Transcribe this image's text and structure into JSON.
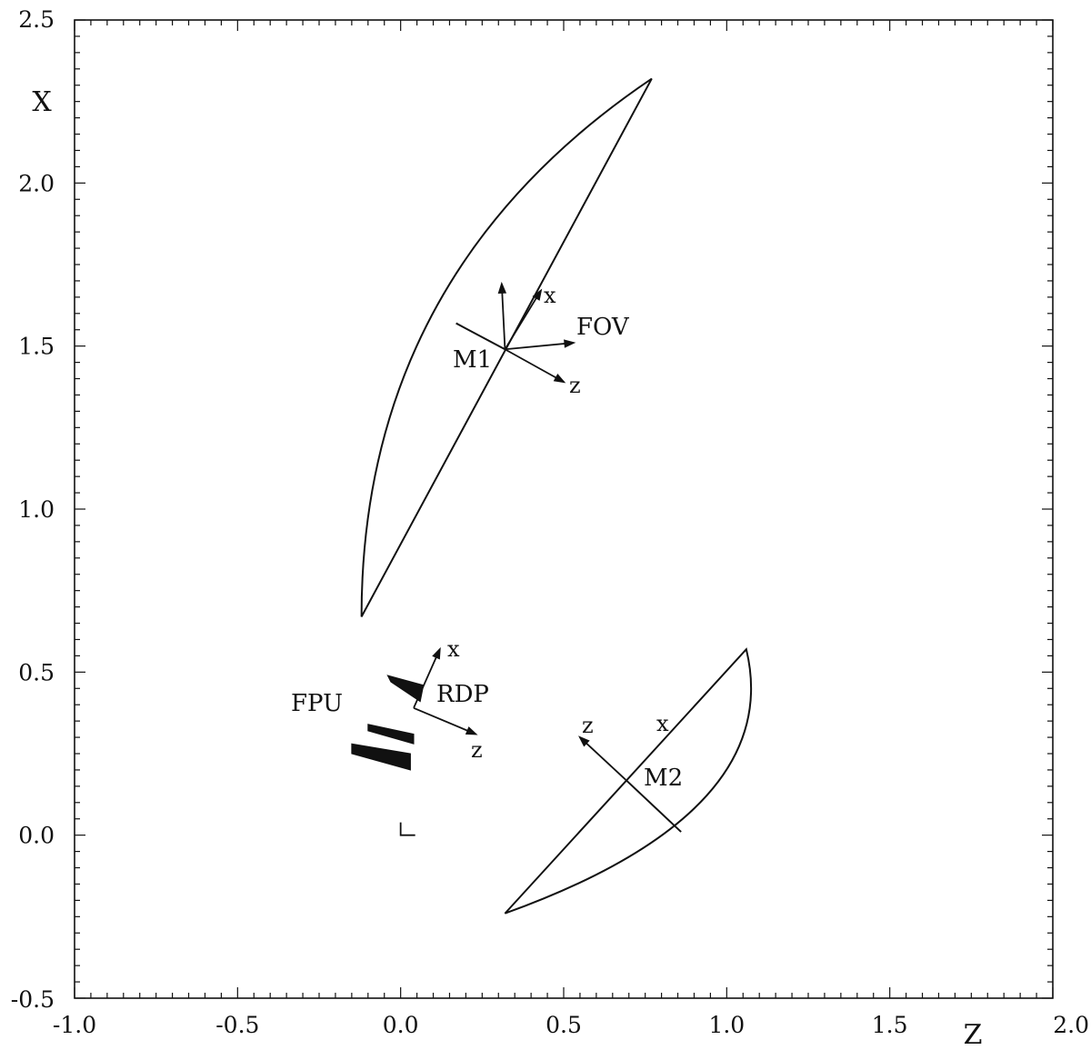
{
  "chart_data": {
    "type": "diagram",
    "x_axis": {
      "label": "Z",
      "range": [
        -1.0,
        2.0
      ],
      "ticks": [
        "-1.0",
        "-0.5",
        "0.0",
        "0.5",
        "1.0",
        "1.5",
        "2.0"
      ]
    },
    "y_axis": {
      "label": "X",
      "range": [
        -0.5,
        2.5
      ],
      "ticks": [
        "-0.5",
        "0.0",
        "0.5",
        "1.0",
        "1.5",
        "2.0",
        "2.5"
      ]
    },
    "grid": false,
    "annotations": {
      "m1": "M1",
      "m2": "M2",
      "fov": "FOV",
      "fpu": "FPU",
      "rdp": "RDP",
      "m1_x": "x",
      "m1_z": "z",
      "rdp_x": "x",
      "rdp_z": "z",
      "m2_x": "x",
      "m2_z": "z"
    },
    "mirrors": {
      "M1": {
        "chord_start": [
          -0.12,
          0.67
        ],
        "chord_end": [
          0.77,
          2.32
        ],
        "arc_control": [
          -0.12,
          1.72
        ],
        "vertex": [
          0.32,
          1.49
        ],
        "axis_line_end": [
          0.17,
          1.57
        ]
      },
      "M2": {
        "chord_start": [
          0.32,
          -0.24
        ],
        "chord_end": [
          1.06,
          0.57
        ],
        "arc_control": [
          1.18,
          0.07
        ],
        "vertex": [
          0.69,
          0.17
        ],
        "axis_line_end": [
          0.86,
          0.01
        ]
      }
    },
    "coordinate_frames": {
      "M1": {
        "origin": [
          0.32,
          1.49
        ],
        "x_tip": [
          0.43,
          1.67
        ],
        "z_tip": [
          0.5,
          1.39
        ],
        "fov_a": [
          0.31,
          1.69
        ],
        "fov_b": [
          0.53,
          1.51
        ]
      },
      "RDP": {
        "origin": [
          0.04,
          0.39
        ],
        "x_tip": [
          0.12,
          0.57
        ],
        "z_tip": [
          0.23,
          0.31
        ]
      },
      "M2": {
        "origin": [
          0.69,
          0.17
        ],
        "z_tip": [
          0.55,
          0.3
        ]
      }
    },
    "fpu_elements": [
      [
        [
          -0.04,
          0.49
        ],
        [
          0.07,
          0.46
        ],
        [
          0.06,
          0.41
        ],
        [
          -0.03,
          0.47
        ]
      ],
      [
        [
          -0.1,
          0.34
        ],
        [
          0.04,
          0.31
        ],
        [
          0.04,
          0.28
        ],
        [
          -0.1,
          0.32
        ]
      ],
      [
        [
          -0.15,
          0.28
        ],
        [
          0.03,
          0.25
        ],
        [
          0.03,
          0.2
        ],
        [
          -0.15,
          0.25
        ]
      ]
    ],
    "origin_marker": [
      0.0,
      0.0
    ]
  }
}
